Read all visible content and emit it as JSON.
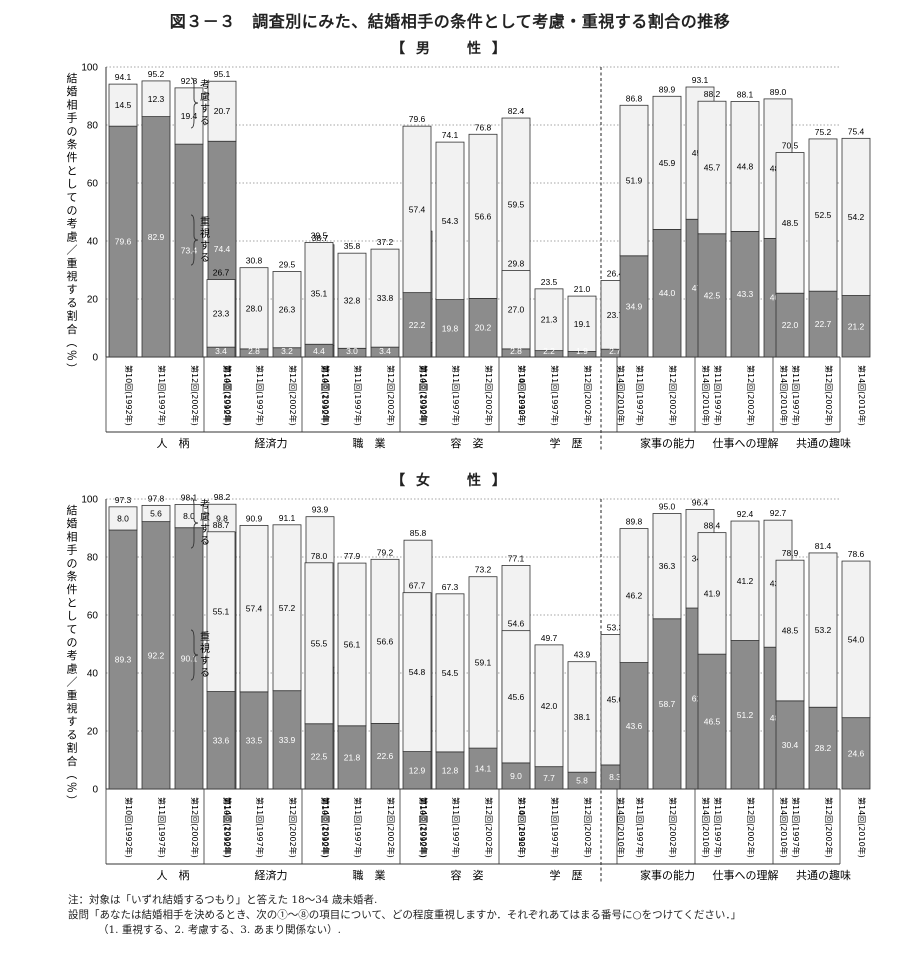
{
  "figure_title": "図３－３　調査別にみた、結婚相手の条件として考慮・重視する割合の推移",
  "chart_data": [
    {
      "type": "bar",
      "stacked": true,
      "title": "【 男　　性 】",
      "ylabel": "結婚相手の条件としての考慮／重視する割合（％）",
      "ylim": [
        0,
        100
      ],
      "yticks": [
        0,
        20,
        40,
        60,
        80,
        100
      ],
      "grid": "dotted",
      "annotations": {
        "top_segment": "考慮する",
        "bottom_segment": "重視する"
      },
      "groups": [
        {
          "name": "人　柄",
          "bars": [
            {
              "label": "第10回(1992年)",
              "emphasize": 79.6,
              "consider": 14.5,
              "total": 94.1
            },
            {
              "label": "第11回(1997年)",
              "emphasize": 82.9,
              "consider": 12.3,
              "total": 95.2
            },
            {
              "label": "第12回(2002年)",
              "emphasize": 73.4,
              "consider": 19.4,
              "total": 92.8
            },
            {
              "label": "第14回(2010年)",
              "emphasize": 74.4,
              "consider": 20.7,
              "total": 95.1
            }
          ]
        },
        {
          "name": "経済力",
          "bars": [
            {
              "label": "第10回(1992年)",
              "emphasize": 3.4,
              "consider": 23.3,
              "total": 26.7
            },
            {
              "label": "第11回(1997年)",
              "emphasize": 2.8,
              "consider": 28.0,
              "total": 30.8
            },
            {
              "label": "第12回(2002年)",
              "emphasize": 3.2,
              "consider": 26.3,
              "total": 29.5
            },
            {
              "label": "第14回(2010年)",
              "emphasize": 4.0,
              "consider": 34.7,
              "total": 38.7
            }
          ]
        },
        {
          "name": "職　業",
          "bars": [
            {
              "label": "第10回(1992年)",
              "emphasize": 4.4,
              "consider": 35.1,
              "total": 39.5
            },
            {
              "label": "第11回(1997年)",
              "emphasize": 3.0,
              "consider": 32.8,
              "total": 35.8
            },
            {
              "label": "第12回(2002年)",
              "emphasize": 3.4,
              "consider": 33.8,
              "total": 37.2
            },
            {
              "label": "第14回(2010年)",
              "emphasize": 5.0,
              "consider": 38.4,
              "total": 43.4
            }
          ]
        },
        {
          "name": "容　姿",
          "bars": [
            {
              "label": "第10回(1992年)",
              "emphasize": 22.2,
              "consider": 57.4,
              "total": 79.6
            },
            {
              "label": "第11回(1997年)",
              "emphasize": 19.8,
              "consider": 54.3,
              "total": 74.1
            },
            {
              "label": "第12回(2002年)",
              "emphasize": 20.2,
              "consider": 56.6,
              "total": 76.8
            },
            {
              "label": "第14回(2010年)",
              "emphasize": 22.9,
              "consider": 59.5,
              "total": 82.4
            }
          ]
        },
        {
          "name": "学　歴",
          "bars": [
            {
              "label": "第10回(1992年)",
              "emphasize": 2.8,
              "consider": 27.0,
              "total": 29.8
            },
            {
              "label": "第11回(1997年)",
              "emphasize": 2.2,
              "consider": 21.3,
              "total": 23.5
            },
            {
              "label": "第12回(2002年)",
              "emphasize": 1.9,
              "consider": 19.1,
              "total": 21.0
            },
            {
              "label": "第14回(2010年)",
              "emphasize": 2.7,
              "consider": 23.7,
              "total": 26.4
            }
          ]
        },
        {
          "name": "家事の能力",
          "bars": [
            {
              "label": "第11回(1997年)",
              "emphasize": 34.9,
              "consider": 51.9,
              "total": 86.8
            },
            {
              "label": "第12回(2002年)",
              "emphasize": 44.0,
              "consider": 45.9,
              "total": 89.9
            },
            {
              "label": "第14回(2010年)",
              "emphasize": 47.5,
              "consider": 45.6,
              "total": 93.1
            }
          ]
        },
        {
          "name": "仕事への理解",
          "bars": [
            {
              "label": "第11回(1997年)",
              "emphasize": 42.5,
              "consider": 45.7,
              "total": 88.2
            },
            {
              "label": "第12回(2002年)",
              "emphasize": 43.3,
              "consider": 44.8,
              "total": 88.1
            },
            {
              "label": "第14回(2010年)",
              "emphasize": 40.9,
              "consider": 48.1,
              "total": 89.0
            }
          ]
        },
        {
          "name": "共通の趣味",
          "bars": [
            {
              "label": "第11回(1997年)",
              "emphasize": 22.0,
              "consider": 48.5,
              "total": 70.5
            },
            {
              "label": "第12回(2002年)",
              "emphasize": 22.7,
              "consider": 52.5,
              "total": 75.2
            },
            {
              "label": "第14回(2010年)",
              "emphasize": 21.2,
              "consider": 54.2,
              "total": 75.4
            }
          ]
        }
      ]
    },
    {
      "type": "bar",
      "stacked": true,
      "title": "【 女　　性 】",
      "ylabel": "結婚相手の条件としての考慮／重視する割合（％）",
      "ylim": [
        0,
        100
      ],
      "yticks": [
        0,
        20,
        40,
        60,
        80,
        100
      ],
      "grid": "dotted",
      "annotations": {
        "top_segment": "考慮する",
        "bottom_segment": "重視する"
      },
      "groups": [
        {
          "name": "人　柄",
          "bars": [
            {
              "label": "第10回(1992年)",
              "emphasize": 89.3,
              "consider": 8.0,
              "total": 97.3
            },
            {
              "label": "第11回(1997年)",
              "emphasize": 92.2,
              "consider": 5.6,
              "total": 97.8
            },
            {
              "label": "第12回(2002年)",
              "emphasize": 90.1,
              "consider": 8.0,
              "total": 98.1
            },
            {
              "label": "第14回(2010年)",
              "emphasize": 88.4,
              "consider": 9.8,
              "total": 98.2
            }
          ]
        },
        {
          "name": "経済力",
          "bars": [
            {
              "label": "第10回(1992年)",
              "emphasize": 33.6,
              "consider": 55.1,
              "total": 88.7
            },
            {
              "label": "第11回(1997年)",
              "emphasize": 33.5,
              "consider": 57.4,
              "total": 90.9
            },
            {
              "label": "第12回(2002年)",
              "emphasize": 33.9,
              "consider": 57.2,
              "total": 91.1
            },
            {
              "label": "第14回(2010年)",
              "emphasize": 42.0,
              "consider": 51.9,
              "total": 93.9
            }
          ]
        },
        {
          "name": "職　業",
          "bars": [
            {
              "label": "第10回(1992年)",
              "emphasize": 22.5,
              "consider": 55.5,
              "total": 78.0
            },
            {
              "label": "第11回(1997年)",
              "emphasize": 21.8,
              "consider": 56.1,
              "total": 77.9
            },
            {
              "label": "第12回(2002年)",
              "emphasize": 22.6,
              "consider": 56.6,
              "total": 79.2
            },
            {
              "label": "第14回(2010年)",
              "emphasize": 31.9,
              "consider": 53.9,
              "total": 85.8
            }
          ]
        },
        {
          "name": "容　姿",
          "bars": [
            {
              "label": "第10回(1992年)",
              "emphasize": 12.9,
              "consider": 54.8,
              "total": 67.7
            },
            {
              "label": "第11回(1997年)",
              "emphasize": 12.8,
              "consider": 54.5,
              "total": 67.3
            },
            {
              "label": "第12回(2002年)",
              "emphasize": 14.1,
              "consider": 59.1,
              "total": 73.2
            },
            {
              "label": "第14回(2010年)",
              "emphasize": 15.6,
              "consider": 61.5,
              "total": 77.1
            }
          ]
        },
        {
          "name": "学　歴",
          "bars": [
            {
              "label": "第10回(1992年)",
              "emphasize": 9.0,
              "consider": 45.6,
              "total": 54.6
            },
            {
              "label": "第11回(1997年)",
              "emphasize": 7.7,
              "consider": 42.0,
              "total": 49.7
            },
            {
              "label": "第12回(2002年)",
              "emphasize": 5.8,
              "consider": 38.1,
              "total": 43.9
            },
            {
              "label": "第14回(2010年)",
              "emphasize": 8.3,
              "consider": 45.0,
              "total": 53.3
            }
          ]
        },
        {
          "name": "家事の能力",
          "bars": [
            {
              "label": "第11回(1997年)",
              "emphasize": 43.6,
              "consider": 46.2,
              "total": 89.8
            },
            {
              "label": "第12回(2002年)",
              "emphasize": 58.7,
              "consider": 36.3,
              "total": 95.0
            },
            {
              "label": "第14回(2010年)",
              "emphasize": 62.4,
              "consider": 34.0,
              "total": 96.4
            }
          ]
        },
        {
          "name": "仕事への理解",
          "bars": [
            {
              "label": "第11回(1997年)",
              "emphasize": 46.5,
              "consider": 41.9,
              "total": 88.4
            },
            {
              "label": "第12回(2002年)",
              "emphasize": 51.2,
              "consider": 41.2,
              "total": 92.4
            },
            {
              "label": "第14回(2010年)",
              "emphasize": 48.9,
              "consider": 43.8,
              "total": 92.7
            }
          ]
        },
        {
          "name": "共通の趣味",
          "bars": [
            {
              "label": "第11回(1997年)",
              "emphasize": 30.4,
              "consider": 48.5,
              "total": 78.9
            },
            {
              "label": "第12回(2002年)",
              "emphasize": 28.2,
              "consider": 53.2,
              "total": 81.4
            },
            {
              "label": "第14回(2010年)",
              "emphasize": 24.6,
              "consider": 54.0,
              "total": 78.6
            }
          ]
        }
      ]
    }
  ],
  "colors": {
    "emphasize": "#8c8c8c",
    "consider": "#f2f2f2",
    "outline": "#333333"
  },
  "notes": {
    "line1": "注：対象は「いずれ結婚するつもり」と答えた 18～34 歳未婚者.",
    "line2": "設問「あなたは結婚相手を決めるとき、次の①～⑧の項目について、どの程度重視しますか．それぞれあてはまる番号に○をつけてください．」",
    "line3": "（1. 重視する、2. 考慮する、3. あまり関係ない）."
  }
}
